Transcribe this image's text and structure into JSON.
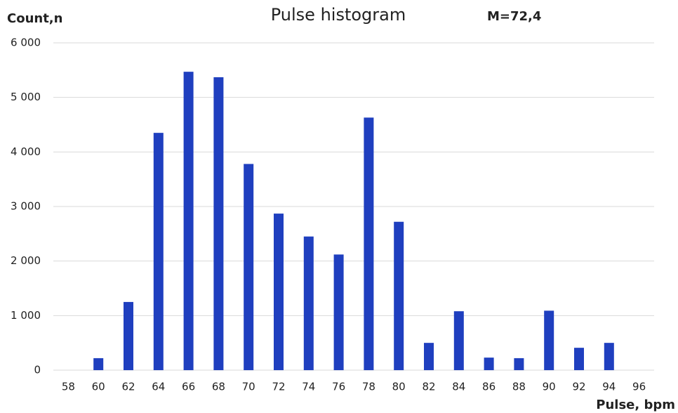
{
  "chart_data": {
    "type": "bar",
    "title": "Pulse histogram",
    "annotation": "M=72,4",
    "ylabel": "Count,n",
    "xlabel": "Pulse, bpm",
    "categories": [
      "58",
      "60",
      "62",
      "64",
      "66",
      "68",
      "70",
      "72",
      "74",
      "76",
      "78",
      "80",
      "82",
      "84",
      "86",
      "88",
      "90",
      "92",
      "94",
      "96"
    ],
    "values": [
      0,
      220,
      1250,
      4350,
      5470,
      5370,
      3780,
      2870,
      2450,
      2120,
      4630,
      2720,
      500,
      1080,
      230,
      220,
      1090,
      410,
      500,
      0
    ],
    "color": "#1f3fbf",
    "ylim": [
      0,
      6000
    ],
    "yticks": [
      0,
      {
        "value": 1000,
        "label": "1 000"
      },
      {
        "value": 2000,
        "label": "2 000"
      },
      {
        "value": 3000,
        "label": "3 000"
      },
      {
        "value": 4000,
        "label": "4 000"
      },
      {
        "value": 5000,
        "label": "5 000"
      },
      {
        "value": 6000,
        "label": "6 000"
      }
    ],
    "grid": true
  }
}
